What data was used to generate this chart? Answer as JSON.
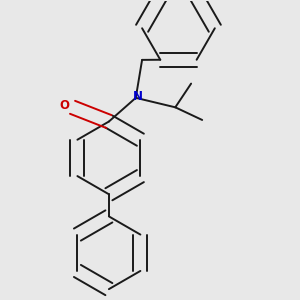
{
  "background_color": "#e8e8e8",
  "bond_color": "#1a1a1a",
  "oxygen_color": "#cc0000",
  "nitrogen_color": "#0000cc",
  "figsize": [
    3.0,
    3.0
  ],
  "dpi": 100,
  "bond_lw": 1.4,
  "ring_r": 0.115
}
